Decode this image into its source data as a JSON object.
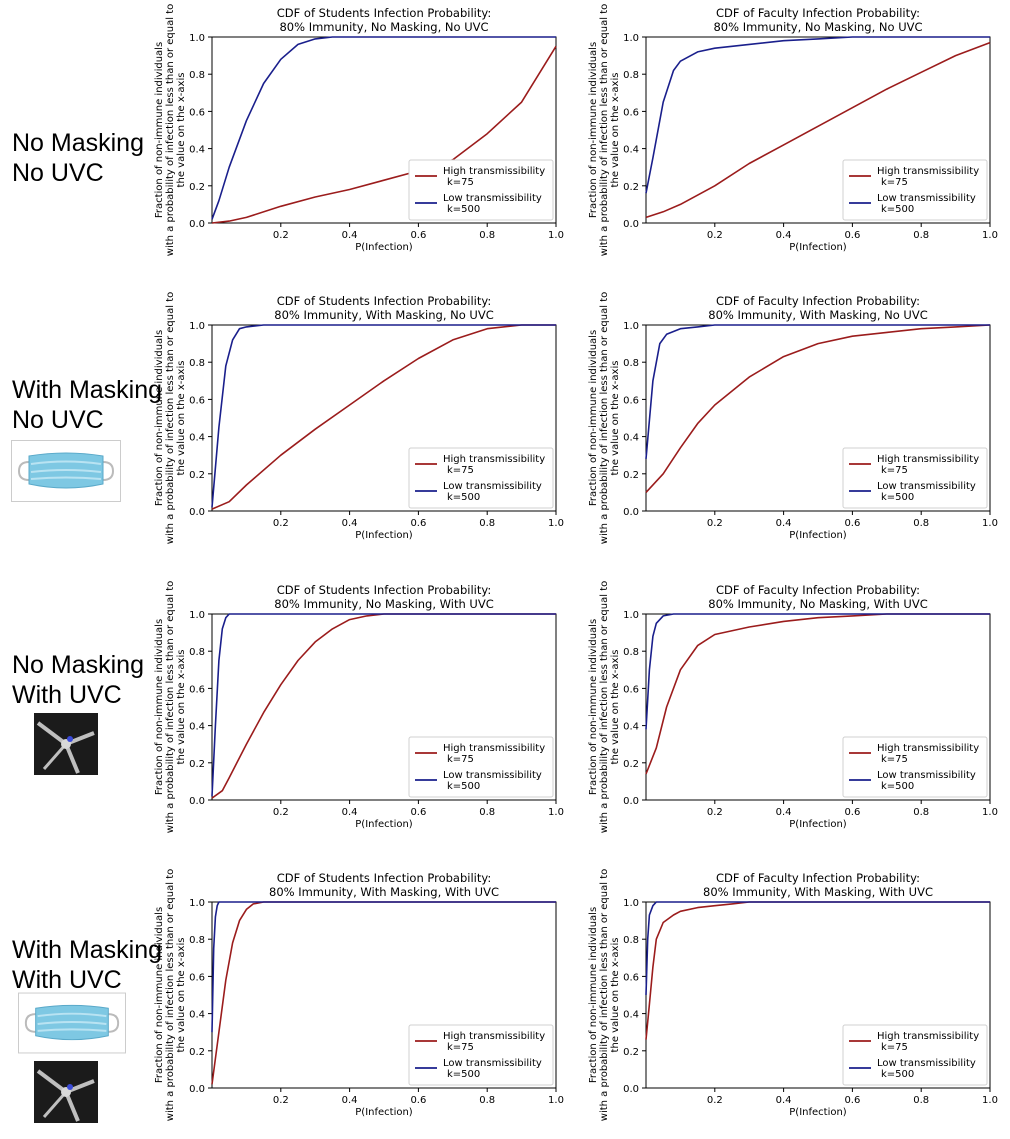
{
  "rows": [
    {
      "label_line1": "No Masking",
      "label_line2": "No UVC",
      "icons": []
    },
    {
      "label_line1": "With Masking",
      "label_line2": "No UVC",
      "icons": [
        "surgical-mask-image"
      ]
    },
    {
      "label_line1": "No Masking",
      "label_line2": "With UVC",
      "icons": [
        "uvc-fan-image"
      ]
    },
    {
      "label_line1": "With Masking",
      "label_line2": "With UVC",
      "icons": [
        "surgical-mask-image",
        "uvc-fan-image"
      ]
    }
  ],
  "chart_data": [
    {
      "type": "line",
      "title_line1": "CDF of Students Infection Probability:",
      "title_line2": "80% Immunity, No Masking, No UVC",
      "xlabel": "P(Infection)",
      "ylabel_line1": "Fraction of non-immune individuals",
      "ylabel_line2": "with a probability of infection less than or equal to",
      "ylabel_line3": "the value on the x-axis",
      "xlim": [
        0,
        1
      ],
      "ylim": [
        0,
        1
      ],
      "xticks": [
        "0.2",
        "0.4",
        "0.6",
        "0.8",
        "1.0"
      ],
      "yticks": [
        "0.0",
        "0.2",
        "0.4",
        "0.6",
        "0.8",
        "1.0"
      ],
      "legend": "lower-right",
      "series": [
        {
          "name": "High transmissibility",
          "name_line2": "k=75",
          "color": "#9b1c1c",
          "x": [
            0,
            0.05,
            0.1,
            0.2,
            0.3,
            0.4,
            0.5,
            0.6,
            0.7,
            0.8,
            0.9,
            1.0
          ],
          "y": [
            0,
            0.01,
            0.03,
            0.09,
            0.14,
            0.18,
            0.23,
            0.28,
            0.34,
            0.48,
            0.65,
            0.95
          ]
        },
        {
          "name": "Low transmissibility",
          "name_line2": "k=500",
          "color": "#1a1f8c",
          "x": [
            0,
            0.02,
            0.05,
            0.1,
            0.15,
            0.2,
            0.25,
            0.3,
            0.35,
            0.4,
            1.0
          ],
          "y": [
            0.02,
            0.12,
            0.3,
            0.55,
            0.75,
            0.88,
            0.96,
            0.99,
            1.0,
            1.0,
            1.0
          ]
        }
      ]
    },
    {
      "type": "line",
      "title_line1": "CDF of Faculty Infection Probability:",
      "title_line2": "80% Immunity, No Masking, No UVC",
      "xlabel": "P(Infection)",
      "ylabel_line1": "Fraction of non-immune individuals",
      "ylabel_line2": "with a probability of infection less than or equal to",
      "ylabel_line3": "the value on the x-axis",
      "xlim": [
        0,
        1
      ],
      "ylim": [
        0,
        1
      ],
      "xticks": [
        "0.2",
        "0.4",
        "0.6",
        "0.8",
        "1.0"
      ],
      "yticks": [
        "0.0",
        "0.2",
        "0.4",
        "0.6",
        "0.8",
        "1.0"
      ],
      "legend": "lower-right",
      "series": [
        {
          "name": "High transmissibility",
          "name_line2": "k=75",
          "color": "#9b1c1c",
          "x": [
            0,
            0.05,
            0.1,
            0.2,
            0.3,
            0.4,
            0.5,
            0.6,
            0.7,
            0.8,
            0.9,
            1.0
          ],
          "y": [
            0.03,
            0.06,
            0.1,
            0.2,
            0.32,
            0.42,
            0.52,
            0.62,
            0.72,
            0.81,
            0.9,
            0.97
          ]
        },
        {
          "name": "Low transmissibility",
          "name_line2": "k=500",
          "color": "#1a1f8c",
          "x": [
            0,
            0.02,
            0.05,
            0.08,
            0.1,
            0.15,
            0.2,
            0.3,
            0.4,
            0.5,
            0.6,
            1.0
          ],
          "y": [
            0.16,
            0.35,
            0.65,
            0.82,
            0.87,
            0.92,
            0.94,
            0.96,
            0.98,
            0.99,
            1.0,
            1.0
          ]
        }
      ]
    },
    {
      "type": "line",
      "title_line1": "CDF of Students Infection Probability:",
      "title_line2": "80% Immunity, With Masking, No UVC",
      "xlabel": "P(Infection)",
      "ylabel_line1": "Fraction of non-immune individuals",
      "ylabel_line2": "with a probability of infection less than or equal to",
      "ylabel_line3": "the value on the x-axis",
      "xlim": [
        0,
        1
      ],
      "ylim": [
        0,
        1
      ],
      "xticks": [
        "0.2",
        "0.4",
        "0.6",
        "0.8",
        "1.0"
      ],
      "yticks": [
        "0.0",
        "0.2",
        "0.4",
        "0.6",
        "0.8",
        "1.0"
      ],
      "legend": "lower-right",
      "series": [
        {
          "name": "High transmissibility",
          "name_line2": "k=75",
          "color": "#9b1c1c",
          "x": [
            0,
            0.05,
            0.1,
            0.2,
            0.3,
            0.4,
            0.5,
            0.6,
            0.7,
            0.8,
            0.9,
            1.0
          ],
          "y": [
            0.01,
            0.05,
            0.14,
            0.3,
            0.44,
            0.57,
            0.7,
            0.82,
            0.92,
            0.98,
            1.0,
            1.0
          ]
        },
        {
          "name": "Low transmissibility",
          "name_line2": "k=500",
          "color": "#1a1f8c",
          "x": [
            0,
            0.02,
            0.04,
            0.06,
            0.08,
            0.1,
            0.15,
            1.0
          ],
          "y": [
            0.02,
            0.45,
            0.78,
            0.92,
            0.98,
            0.99,
            1.0,
            1.0
          ]
        }
      ]
    },
    {
      "type": "line",
      "title_line1": "CDF of Faculty Infection Probability:",
      "title_line2": "80% Immunity, With Masking, No UVC",
      "xlabel": "P(Infection)",
      "ylabel_line1": "Fraction of non-immune individuals",
      "ylabel_line2": "with a probability of infection less than or equal to",
      "ylabel_line3": "the value on the x-axis",
      "xlim": [
        0,
        1
      ],
      "ylim": [
        0,
        1
      ],
      "xticks": [
        "0.2",
        "0.4",
        "0.6",
        "0.8",
        "1.0"
      ],
      "yticks": [
        "0.0",
        "0.2",
        "0.4",
        "0.6",
        "0.8",
        "1.0"
      ],
      "legend": "lower-right",
      "series": [
        {
          "name": "High transmissibility",
          "name_line2": "k=75",
          "color": "#9b1c1c",
          "x": [
            0,
            0.05,
            0.1,
            0.15,
            0.2,
            0.3,
            0.4,
            0.5,
            0.6,
            0.7,
            0.8,
            0.9,
            1.0
          ],
          "y": [
            0.1,
            0.2,
            0.34,
            0.47,
            0.57,
            0.72,
            0.83,
            0.9,
            0.94,
            0.96,
            0.98,
            0.99,
            1.0
          ]
        },
        {
          "name": "Low transmissibility",
          "name_line2": "k=500",
          "color": "#1a1f8c",
          "x": [
            0,
            0.02,
            0.04,
            0.06,
            0.1,
            0.15,
            0.2,
            1.0
          ],
          "y": [
            0.28,
            0.7,
            0.9,
            0.95,
            0.98,
            0.99,
            1.0,
            1.0
          ]
        }
      ]
    },
    {
      "type": "line",
      "title_line1": "CDF of Students Infection Probability:",
      "title_line2": "80% Immunity, No Masking, With UVC",
      "xlabel": "P(Infection)",
      "ylabel_line1": "Fraction of non-immune individuals",
      "ylabel_line2": "with a probability of infection less than or equal to",
      "ylabel_line3": "the value on the x-axis",
      "xlim": [
        0,
        1
      ],
      "ylim": [
        0,
        1
      ],
      "xticks": [
        "0.2",
        "0.4",
        "0.6",
        "0.8",
        "1.0"
      ],
      "yticks": [
        "0.0",
        "0.2",
        "0.4",
        "0.6",
        "0.8",
        "1.0"
      ],
      "legend": "lower-right",
      "series": [
        {
          "name": "High transmissibility",
          "name_line2": "k=75",
          "color": "#9b1c1c",
          "x": [
            0,
            0.03,
            0.05,
            0.1,
            0.15,
            0.2,
            0.25,
            0.3,
            0.35,
            0.4,
            0.45,
            0.5,
            0.6,
            1.0
          ],
          "y": [
            0.01,
            0.05,
            0.12,
            0.3,
            0.47,
            0.62,
            0.75,
            0.85,
            0.92,
            0.97,
            0.99,
            1.0,
            1.0,
            1.0
          ]
        },
        {
          "name": "Low transmissibility",
          "name_line2": "k=500",
          "color": "#1a1f8c",
          "x": [
            0,
            0.01,
            0.02,
            0.03,
            0.04,
            0.05,
            0.07,
            1.0
          ],
          "y": [
            0.02,
            0.4,
            0.75,
            0.92,
            0.98,
            1.0,
            1.0,
            1.0
          ]
        }
      ]
    },
    {
      "type": "line",
      "title_line1": "CDF of Faculty Infection Probability:",
      "title_line2": "80% Immunity, No Masking, With UVC",
      "xlabel": "P(Infection)",
      "ylabel_line1": "Fraction of non-immune individuals",
      "ylabel_line2": "with a probability of infection less than or equal to",
      "ylabel_line3": "the value on the x-axis",
      "xlim": [
        0,
        1
      ],
      "ylim": [
        0,
        1
      ],
      "xticks": [
        "0.2",
        "0.4",
        "0.6",
        "0.8",
        "1.0"
      ],
      "yticks": [
        "0.0",
        "0.2",
        "0.4",
        "0.6",
        "0.8",
        "1.0"
      ],
      "legend": "lower-right",
      "series": [
        {
          "name": "High transmissibility",
          "name_line2": "k=75",
          "color": "#9b1c1c",
          "x": [
            0,
            0.03,
            0.06,
            0.1,
            0.15,
            0.2,
            0.3,
            0.4,
            0.5,
            0.6,
            0.7,
            1.0
          ],
          "y": [
            0.14,
            0.28,
            0.5,
            0.7,
            0.83,
            0.89,
            0.93,
            0.96,
            0.98,
            0.99,
            1.0,
            1.0
          ]
        },
        {
          "name": "Low transmissibility",
          "name_line2": "k=500",
          "color": "#1a1f8c",
          "x": [
            0,
            0.01,
            0.02,
            0.03,
            0.05,
            0.08,
            0.12,
            1.0
          ],
          "y": [
            0.38,
            0.7,
            0.88,
            0.95,
            0.99,
            1.0,
            1.0,
            1.0
          ]
        }
      ]
    },
    {
      "type": "line",
      "title_line1": "CDF of Students Infection Probability:",
      "title_line2": "80% Immunity, With Masking, With UVC",
      "xlabel": "P(Infection)",
      "ylabel_line1": "Fraction of non-immune individuals",
      "ylabel_line2": "with a probability of infection less than or equal to",
      "ylabel_line3": "the value on the x-axis",
      "xlim": [
        0,
        1
      ],
      "ylim": [
        0,
        1
      ],
      "xticks": [
        "0.2",
        "0.4",
        "0.6",
        "0.8",
        "1.0"
      ],
      "yticks": [
        "0.0",
        "0.2",
        "0.4",
        "0.6",
        "0.8",
        "1.0"
      ],
      "legend": "lower-right",
      "series": [
        {
          "name": "High transmissibility",
          "name_line2": "k=75",
          "color": "#9b1c1c",
          "x": [
            0,
            0.02,
            0.04,
            0.06,
            0.08,
            0.1,
            0.12,
            0.15,
            0.2,
            1.0
          ],
          "y": [
            0.02,
            0.3,
            0.58,
            0.78,
            0.9,
            0.96,
            0.99,
            1.0,
            1.0,
            1.0
          ]
        },
        {
          "name": "Low transmissibility",
          "name_line2": "k=500",
          "color": "#1a1f8c",
          "x": [
            0,
            0.005,
            0.01,
            0.015,
            0.02,
            0.03,
            0.05,
            1.0
          ],
          "y": [
            0.3,
            0.75,
            0.92,
            0.98,
            1.0,
            1.0,
            1.0,
            1.0
          ]
        }
      ]
    },
    {
      "type": "line",
      "title_line1": "CDF of Faculty Infection Probability:",
      "title_line2": "80% Immunity, With Masking, With UVC",
      "xlabel": "P(Infection)",
      "ylabel_line1": "Fraction of non-immune individuals",
      "ylabel_line2": "with a probability of infection less than or equal to",
      "ylabel_line3": "the value on the x-axis",
      "xlim": [
        0,
        1
      ],
      "ylim": [
        0,
        1
      ],
      "xticks": [
        "0.2",
        "0.4",
        "0.6",
        "0.8",
        "1.0"
      ],
      "yticks": [
        "0.0",
        "0.2",
        "0.4",
        "0.6",
        "0.8",
        "1.0"
      ],
      "legend": "lower-right",
      "series": [
        {
          "name": "High transmissibility",
          "name_line2": "k=75",
          "color": "#9b1c1c",
          "x": [
            0,
            0.01,
            0.02,
            0.03,
            0.05,
            0.08,
            0.1,
            0.15,
            0.2,
            0.25,
            0.3,
            1.0
          ],
          "y": [
            0.26,
            0.45,
            0.65,
            0.8,
            0.89,
            0.93,
            0.95,
            0.97,
            0.98,
            0.99,
            1.0,
            1.0
          ]
        },
        {
          "name": "Low transmissibility",
          "name_line2": "k=500",
          "color": "#1a1f8c",
          "x": [
            0,
            0.005,
            0.01,
            0.02,
            0.03,
            0.05,
            1.0
          ],
          "y": [
            0.5,
            0.8,
            0.93,
            0.98,
            1.0,
            1.0,
            1.0
          ]
        }
      ]
    }
  ]
}
